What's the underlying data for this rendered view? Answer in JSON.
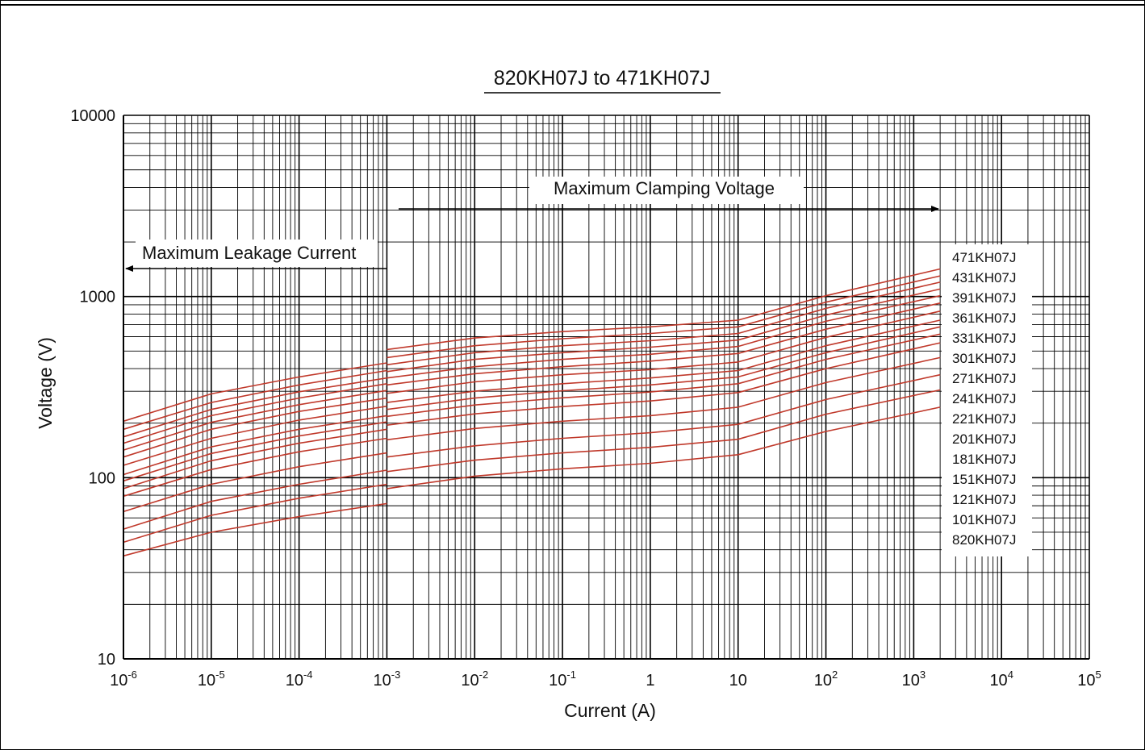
{
  "chart_data": {
    "type": "line",
    "title": "820KH07J to 471KH07J",
    "xlabel": "Current (A)",
    "ylabel": "Voltage (V)",
    "x_scale": "log",
    "y_scale": "log",
    "xlim": [
      1e-06,
      100000
    ],
    "ylim": [
      10,
      10000
    ],
    "grid": true,
    "x_ticks": [
      {
        "base": "10",
        "exp": "-6"
      },
      {
        "base": "10",
        "exp": "-5"
      },
      {
        "base": "10",
        "exp": "-4"
      },
      {
        "base": "10",
        "exp": "-3"
      },
      {
        "base": "10",
        "exp": "-2"
      },
      {
        "base": "10",
        "exp": "-1"
      },
      {
        "base": "1",
        "exp": ""
      },
      {
        "base": "10",
        "exp": ""
      },
      {
        "base": "10",
        "exp": "2"
      },
      {
        "base": "10",
        "exp": "3"
      },
      {
        "base": "10",
        "exp": "4"
      },
      {
        "base": "10",
        "exp": "5"
      }
    ],
    "y_ticks": [
      "10",
      "100",
      "1000",
      "10000"
    ],
    "annotations": {
      "leakage": "Maximum Leakage Current",
      "clamping": "Maximum Clamping Voltage"
    },
    "legend_placement": "right",
    "line_color": "#c0392b",
    "leakage_x": [
      1e-06,
      1e-05,
      0.0001,
      0.001
    ],
    "clamping_x": [
      0.001,
      0.01,
      0.1,
      1,
      10,
      100,
      2000
    ],
    "series": [
      {
        "name": "471KH07J",
        "leakage": [
          205,
          290,
          360,
          430
        ],
        "clamping": [
          510,
          590,
          640,
          680,
          740,
          1010,
          1420
        ]
      },
      {
        "name": "431KH07J",
        "leakage": [
          185,
          260,
          325,
          390
        ],
        "clamping": [
          460,
          535,
          585,
          625,
          680,
          930,
          1300
        ]
      },
      {
        "name": "391KH07J",
        "leakage": [
          168,
          238,
          298,
          355
        ],
        "clamping": [
          420,
          490,
          535,
          570,
          625,
          860,
          1200
        ]
      },
      {
        "name": "361KH07J",
        "leakage": [
          155,
          220,
          275,
          330
        ],
        "clamping": [
          385,
          450,
          490,
          525,
          575,
          790,
          1100
        ]
      },
      {
        "name": "331KH07J",
        "leakage": [
          142,
          202,
          253,
          303
        ],
        "clamping": [
          355,
          410,
          450,
          480,
          530,
          730,
          1010
        ]
      },
      {
        "name": "301KH07J",
        "leakage": [
          130,
          185,
          232,
          275
        ],
        "clamping": [
          325,
          375,
          410,
          440,
          485,
          660,
          920
        ]
      },
      {
        "name": "271KH07J",
        "leakage": [
          117,
          165,
          208,
          248
        ],
        "clamping": [
          292,
          338,
          370,
          395,
          435,
          595,
          830
        ]
      },
      {
        "name": "241KH07J",
        "leakage": [
          104,
          148,
          185,
          220
        ],
        "clamping": [
          260,
          300,
          330,
          355,
          390,
          535,
          740
        ]
      },
      {
        "name": "221KH07J",
        "leakage": [
          96,
          136,
          170,
          203
        ],
        "clamping": [
          238,
          275,
          302,
          325,
          360,
          490,
          680
        ]
      },
      {
        "name": "201KH07J",
        "leakage": [
          87,
          124,
          155,
          185
        ],
        "clamping": [
          218,
          252,
          276,
          297,
          330,
          450,
          620
        ]
      },
      {
        "name": "181KH07J",
        "leakage": [
          79,
          111,
          139,
          165
        ],
        "clamping": [
          195,
          225,
          247,
          265,
          295,
          400,
          555
        ]
      },
      {
        "name": "151KH07J",
        "leakage": [
          65,
          92,
          115,
          137
        ],
        "clamping": [
          162,
          187,
          205,
          220,
          245,
          335,
          460
        ]
      },
      {
        "name": "121KH07J",
        "leakage": [
          52,
          74,
          92,
          110
        ],
        "clamping": [
          130,
          150,
          165,
          177,
          197,
          270,
          370
        ]
      },
      {
        "name": "101KH07J",
        "leakage": [
          44,
          62,
          77,
          92
        ],
        "clamping": [
          108,
          125,
          137,
          147,
          163,
          224,
          305
        ]
      },
      {
        "name": "820KH07J",
        "leakage": [
          37,
          50,
          61,
          72
        ],
        "clamping": [
          87,
          102,
          112,
          120,
          134,
          180,
          245
        ]
      }
    ]
  }
}
